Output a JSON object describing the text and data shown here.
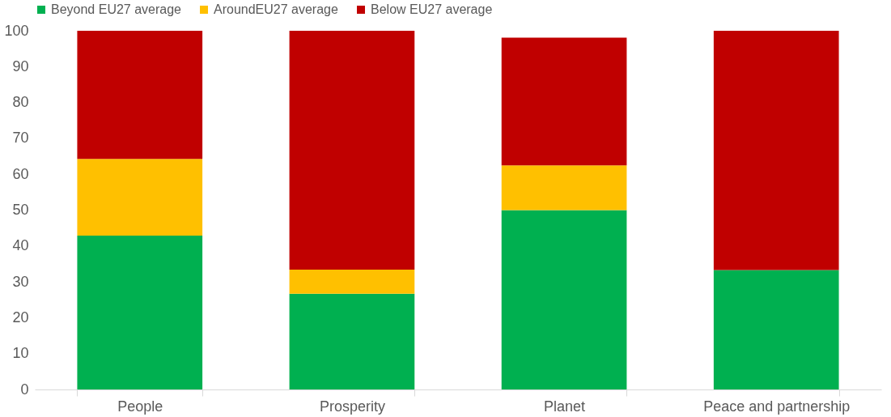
{
  "chart_data": {
    "type": "bar",
    "stacked": true,
    "categories": [
      "People",
      "Prosperity",
      "Planet",
      "Peace and partnership"
    ],
    "series": [
      {
        "name": "Beyond EU27 average",
        "color": "#00b050",
        "values": [
          42.9,
          26.7,
          50,
          33.3
        ]
      },
      {
        "name": "AroundEU27 average",
        "color": "#ffc000",
        "values": [
          21.4,
          6.7,
          12.5,
          0
        ]
      },
      {
        "name": "Below EU27 average",
        "color": "#c00000",
        "values": [
          35.7,
          66.6,
          35.6,
          66.7
        ]
      }
    ],
    "ylim": [
      0,
      100
    ],
    "yticks": [
      0,
      10,
      20,
      30,
      40,
      50,
      60,
      70,
      80,
      90,
      100
    ],
    "grid": false,
    "legend": "top"
  }
}
